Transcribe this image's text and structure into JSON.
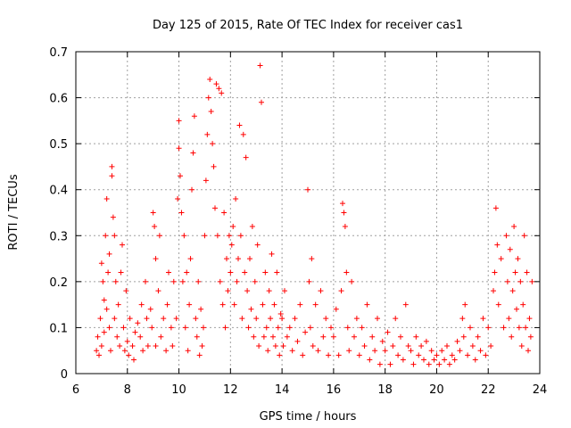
{
  "chart_data": {
    "type": "scatter",
    "title": "Day 125 of 2015, Rate Of TEC Index for receiver cas1",
    "xlabel": "GPS time / hours",
    "ylabel": "ROTI / TECUs",
    "xlim": [
      6,
      24
    ],
    "ylim": [
      0,
      0.7
    ],
    "xticks": [
      6,
      8,
      10,
      12,
      14,
      16,
      18,
      20,
      22,
      24
    ],
    "yticks": [
      0,
      0.1,
      0.2,
      0.3,
      0.4,
      0.5,
      0.6,
      0.7
    ],
    "xtick_labels": [
      "6",
      "8",
      "10",
      "12",
      "14",
      "16",
      "18",
      "20",
      "22",
      "24"
    ],
    "ytick_labels": [
      "0",
      "0.1",
      "0.2",
      "0.3",
      "0.4",
      "0.5",
      "0.6",
      "0.7"
    ],
    "grid": true,
    "marker": "+",
    "marker_color": "#ff0000",
    "series": [
      {
        "name": "cas1",
        "points": [
          [
            6.8,
            0.05
          ],
          [
            6.85,
            0.08
          ],
          [
            6.9,
            0.04
          ],
          [
            6.95,
            0.12
          ],
          [
            7.0,
            0.24
          ],
          [
            7.0,
            0.06
          ],
          [
            7.05,
            0.2
          ],
          [
            7.1,
            0.16
          ],
          [
            7.1,
            0.09
          ],
          [
            7.15,
            0.3
          ],
          [
            7.2,
            0.38
          ],
          [
            7.2,
            0.14
          ],
          [
            7.25,
            0.22
          ],
          [
            7.3,
            0.1
          ],
          [
            7.3,
            0.26
          ],
          [
            7.35,
            0.05
          ],
          [
            7.4,
            0.45
          ],
          [
            7.4,
            0.43
          ],
          [
            7.45,
            0.34
          ],
          [
            7.5,
            0.3
          ],
          [
            7.5,
            0.12
          ],
          [
            7.55,
            0.2
          ],
          [
            7.6,
            0.08
          ],
          [
            7.65,
            0.15
          ],
          [
            7.7,
            0.06
          ],
          [
            7.75,
            0.22
          ],
          [
            7.8,
            0.28
          ],
          [
            7.85,
            0.1
          ],
          [
            7.9,
            0.05
          ],
          [
            7.95,
            0.18
          ],
          [
            8.0,
            0.07
          ],
          [
            8.05,
            0.04
          ],
          [
            8.1,
            0.12
          ],
          [
            8.2,
            0.06
          ],
          [
            8.25,
            0.03
          ],
          [
            8.3,
            0.09
          ],
          [
            8.4,
            0.11
          ],
          [
            8.5,
            0.08
          ],
          [
            8.55,
            0.15
          ],
          [
            8.6,
            0.05
          ],
          [
            8.7,
            0.2
          ],
          [
            8.75,
            0.12
          ],
          [
            8.8,
            0.06
          ],
          [
            8.9,
            0.14
          ],
          [
            8.95,
            0.1
          ],
          [
            9.0,
            0.35
          ],
          [
            9.05,
            0.32
          ],
          [
            9.1,
            0.25
          ],
          [
            9.1,
            0.06
          ],
          [
            9.2,
            0.18
          ],
          [
            9.25,
            0.3
          ],
          [
            9.3,
            0.08
          ],
          [
            9.4,
            0.12
          ],
          [
            9.5,
            0.05
          ],
          [
            9.55,
            0.15
          ],
          [
            9.6,
            0.22
          ],
          [
            9.7,
            0.1
          ],
          [
            9.75,
            0.06
          ],
          [
            9.8,
            0.2
          ],
          [
            9.9,
            0.12
          ],
          [
            9.95,
            0.38
          ],
          [
            10.0,
            0.55
          ],
          [
            10.0,
            0.49
          ],
          [
            10.05,
            0.43
          ],
          [
            10.1,
            0.35
          ],
          [
            10.15,
            0.2
          ],
          [
            10.2,
            0.3
          ],
          [
            10.25,
            0.1
          ],
          [
            10.3,
            0.22
          ],
          [
            10.35,
            0.05
          ],
          [
            10.4,
            0.15
          ],
          [
            10.45,
            0.25
          ],
          [
            10.5,
            0.4
          ],
          [
            10.55,
            0.48
          ],
          [
            10.6,
            0.56
          ],
          [
            10.65,
            0.12
          ],
          [
            10.7,
            0.08
          ],
          [
            10.75,
            0.2
          ],
          [
            10.8,
            0.04
          ],
          [
            10.85,
            0.14
          ],
          [
            10.9,
            0.06
          ],
          [
            10.95,
            0.1
          ],
          [
            11.0,
            0.3
          ],
          [
            11.05,
            0.42
          ],
          [
            11.1,
            0.52
          ],
          [
            11.15,
            0.6
          ],
          [
            11.2,
            0.64
          ],
          [
            11.25,
            0.57
          ],
          [
            11.3,
            0.5
          ],
          [
            11.35,
            0.45
          ],
          [
            11.4,
            0.36
          ],
          [
            11.45,
            0.63
          ],
          [
            11.5,
            0.3
          ],
          [
            11.55,
            0.62
          ],
          [
            11.6,
            0.2
          ],
          [
            11.65,
            0.61
          ],
          [
            11.7,
            0.15
          ],
          [
            11.75,
            0.35
          ],
          [
            11.8,
            0.1
          ],
          [
            11.85,
            0.25
          ],
          [
            11.9,
            0.18
          ],
          [
            11.95,
            0.3
          ],
          [
            12.0,
            0.22
          ],
          [
            12.05,
            0.28
          ],
          [
            12.1,
            0.32
          ],
          [
            12.15,
            0.15
          ],
          [
            12.2,
            0.38
          ],
          [
            12.25,
            0.2
          ],
          [
            12.3,
            0.25
          ],
          [
            12.35,
            0.54
          ],
          [
            12.4,
            0.3
          ],
          [
            12.45,
            0.12
          ],
          [
            12.5,
            0.52
          ],
          [
            12.55,
            0.22
          ],
          [
            12.6,
            0.47
          ],
          [
            12.65,
            0.18
          ],
          [
            12.7,
            0.1
          ],
          [
            12.75,
            0.25
          ],
          [
            12.8,
            0.14
          ],
          [
            12.85,
            0.32
          ],
          [
            12.9,
            0.08
          ],
          [
            12.95,
            0.2
          ],
          [
            13.0,
            0.12
          ],
          [
            13.05,
            0.28
          ],
          [
            13.1,
            0.06
          ],
          [
            13.15,
            0.67
          ],
          [
            13.2,
            0.59
          ],
          [
            13.25,
            0.15
          ],
          [
            13.3,
            0.08
          ],
          [
            13.35,
            0.22
          ],
          [
            13.4,
            0.1
          ],
          [
            13.45,
            0.05
          ],
          [
            13.5,
            0.18
          ],
          [
            13.55,
            0.12
          ],
          [
            13.6,
            0.26
          ],
          [
            13.65,
            0.08
          ],
          [
            13.7,
            0.15
          ],
          [
            13.75,
            0.06
          ],
          [
            13.8,
            0.22
          ],
          [
            13.85,
            0.1
          ],
          [
            13.9,
            0.04
          ],
          [
            13.95,
            0.13
          ],
          [
            14.0,
            0.12
          ],
          [
            14.05,
            0.06
          ],
          [
            14.1,
            0.18
          ],
          [
            14.2,
            0.08
          ],
          [
            14.3,
            0.1
          ],
          [
            14.4,
            0.05
          ],
          [
            14.5,
            0.12
          ],
          [
            14.6,
            0.07
          ],
          [
            14.7,
            0.15
          ],
          [
            14.8,
            0.04
          ],
          [
            14.9,
            0.09
          ],
          [
            15.0,
            0.4
          ],
          [
            15.05,
            0.2
          ],
          [
            15.1,
            0.1
          ],
          [
            15.15,
            0.25
          ],
          [
            15.2,
            0.06
          ],
          [
            15.3,
            0.15
          ],
          [
            15.4,
            0.05
          ],
          [
            15.5,
            0.18
          ],
          [
            15.6,
            0.08
          ],
          [
            15.7,
            0.12
          ],
          [
            15.8,
            0.04
          ],
          [
            15.9,
            0.1
          ],
          [
            16.0,
            0.08
          ],
          [
            16.1,
            0.14
          ],
          [
            16.2,
            0.04
          ],
          [
            16.3,
            0.18
          ],
          [
            16.35,
            0.37
          ],
          [
            16.4,
            0.35
          ],
          [
            16.45,
            0.32
          ],
          [
            16.5,
            0.22
          ],
          [
            16.55,
            0.1
          ],
          [
            16.6,
            0.05
          ],
          [
            16.7,
            0.2
          ],
          [
            16.8,
            0.08
          ],
          [
            16.9,
            0.12
          ],
          [
            17.0,
            0.04
          ],
          [
            17.1,
            0.1
          ],
          [
            17.2,
            0.06
          ],
          [
            17.3,
            0.15
          ],
          [
            17.4,
            0.03
          ],
          [
            17.5,
            0.08
          ],
          [
            17.6,
            0.05
          ],
          [
            17.7,
            0.12
          ],
          [
            17.8,
            0.02
          ],
          [
            17.9,
            0.07
          ],
          [
            18.0,
            0.05
          ],
          [
            18.1,
            0.09
          ],
          [
            18.2,
            0.02
          ],
          [
            18.3,
            0.06
          ],
          [
            18.4,
            0.12
          ],
          [
            18.5,
            0.04
          ],
          [
            18.6,
            0.08
          ],
          [
            18.7,
            0.03
          ],
          [
            18.8,
            0.15
          ],
          [
            18.9,
            0.06
          ],
          [
            19.0,
            0.05
          ],
          [
            19.1,
            0.02
          ],
          [
            19.2,
            0.08
          ],
          [
            19.3,
            0.04
          ],
          [
            19.4,
            0.06
          ],
          [
            19.5,
            0.03
          ],
          [
            19.6,
            0.07
          ],
          [
            19.7,
            0.02
          ],
          [
            19.8,
            0.05
          ],
          [
            19.9,
            0.03
          ],
          [
            20.0,
            0.04
          ],
          [
            20.1,
            0.02
          ],
          [
            20.2,
            0.05
          ],
          [
            20.3,
            0.03
          ],
          [
            20.4,
            0.06
          ],
          [
            20.5,
            0.02
          ],
          [
            20.6,
            0.04
          ],
          [
            20.7,
            0.03
          ],
          [
            20.8,
            0.07
          ],
          [
            20.9,
            0.05
          ],
          [
            21.0,
            0.12
          ],
          [
            21.05,
            0.08
          ],
          [
            21.1,
            0.15
          ],
          [
            21.2,
            0.04
          ],
          [
            21.3,
            0.1
          ],
          [
            21.4,
            0.06
          ],
          [
            21.5,
            0.03
          ],
          [
            21.6,
            0.08
          ],
          [
            21.7,
            0.05
          ],
          [
            21.8,
            0.12
          ],
          [
            21.9,
            0.04
          ],
          [
            22.0,
            0.1
          ],
          [
            22.1,
            0.06
          ],
          [
            22.2,
            0.18
          ],
          [
            22.25,
            0.22
          ],
          [
            22.3,
            0.36
          ],
          [
            22.35,
            0.28
          ],
          [
            22.4,
            0.15
          ],
          [
            22.5,
            0.25
          ],
          [
            22.6,
            0.1
          ],
          [
            22.7,
            0.3
          ],
          [
            22.75,
            0.2
          ],
          [
            22.8,
            0.12
          ],
          [
            22.85,
            0.27
          ],
          [
            22.9,
            0.08
          ],
          [
            22.95,
            0.18
          ],
          [
            23.0,
            0.32
          ],
          [
            23.05,
            0.22
          ],
          [
            23.1,
            0.14
          ],
          [
            23.15,
            0.25
          ],
          [
            23.2,
            0.1
          ],
          [
            23.25,
            0.2
          ],
          [
            23.3,
            0.06
          ],
          [
            23.35,
            0.15
          ],
          [
            23.4,
            0.3
          ],
          [
            23.45,
            0.1
          ],
          [
            23.5,
            0.22
          ],
          [
            23.55,
            0.05
          ],
          [
            23.6,
            0.12
          ],
          [
            23.65,
            0.08
          ],
          [
            23.7,
            0.2
          ]
        ]
      }
    ]
  }
}
